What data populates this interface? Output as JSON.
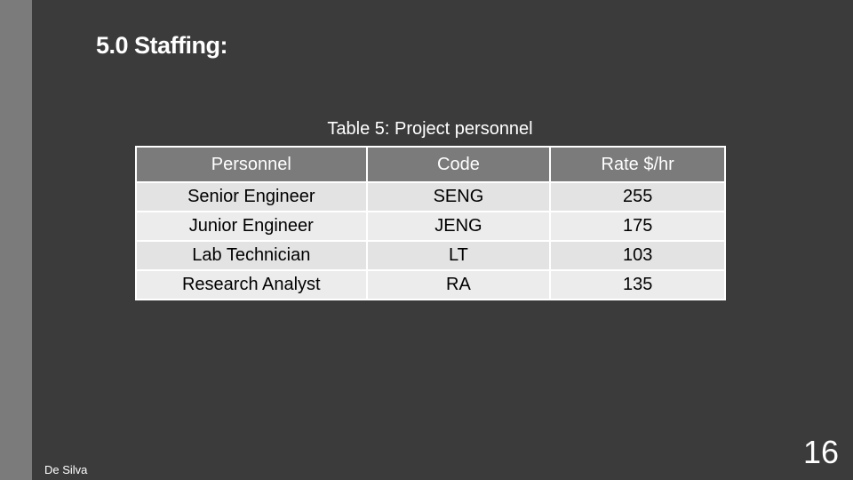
{
  "slide": {
    "title": "5.0 Staffing:",
    "footer_author": "De Silva",
    "page_number": "16"
  },
  "table": {
    "caption": "Table 5: Project personnel",
    "headers": [
      "Personnel",
      "Code",
      "Rate $/hr"
    ],
    "rows": [
      [
        "Senior Engineer",
        "SENG",
        "255"
      ],
      [
        "Junior Engineer",
        "JENG",
        "175"
      ],
      [
        "Lab Technician",
        "LT",
        "103"
      ],
      [
        "Research Analyst",
        "RA",
        "135"
      ]
    ]
  },
  "colors": {
    "background": "#3b3b3c",
    "side_bar": "#7b7b7c",
    "header_fill": "#7b7b7c",
    "row_fill": "#e8e8e8"
  }
}
